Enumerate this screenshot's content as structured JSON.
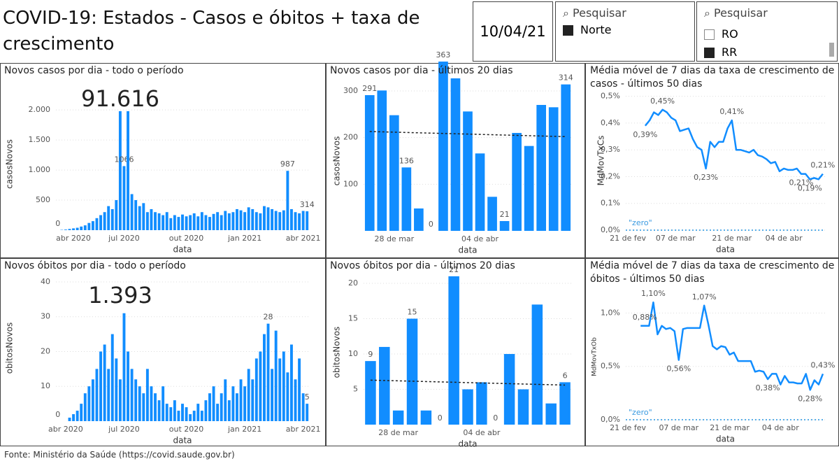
{
  "header": {
    "title": "COVID-19: Estados - Casos e óbitos + taxa de crescimento",
    "date": "10/04/21"
  },
  "slicers": [
    {
      "search": "Pesquisar",
      "items": [
        {
          "label": "Norte",
          "checked": true
        }
      ]
    },
    {
      "search": "Pesquisar",
      "items": [
        {
          "label": "RO",
          "checked": false
        },
        {
          "label": "RR",
          "checked": true
        }
      ]
    }
  ],
  "footer": "Fonte: Ministério da Saúde (https://covid.saude.gov.br)",
  "chart_data": [
    {
      "type": "bar",
      "title": "Novos casos por dia - todo o período",
      "xlabel": "data",
      "ylabel": "casosNovos",
      "color": "#118DFF",
      "grid": true,
      "total": {
        "value": 91616,
        "label": "91.616"
      },
      "ylim": [
        0,
        2200
      ],
      "yticks": [
        500,
        {
          "value": 1000,
          "label": "1.000"
        },
        {
          "value": 1500,
          "label": "1.500"
        },
        {
          "value": 2000,
          "label": "2.000"
        }
      ],
      "categories": [
        null,
        null,
        null,
        null,
        "abr 2020",
        null,
        null,
        null,
        null,
        null,
        null,
        null,
        null,
        null,
        null,
        null,
        null,
        "jul 2020",
        null,
        null,
        null,
        null,
        null,
        null,
        null,
        null,
        null,
        null,
        null,
        null,
        null,
        null,
        null,
        "out 2020",
        null,
        null,
        null,
        null,
        null,
        null,
        null,
        null,
        null,
        null,
        null,
        null,
        null,
        null,
        "jan 2021",
        null,
        null,
        null,
        null,
        null,
        null,
        null,
        null,
        null,
        null,
        null,
        null,
        null,
        null,
        "abr 2021",
        null
      ],
      "values": [
        0,
        5,
        10,
        20,
        30,
        40,
        60,
        80,
        120,
        150,
        200,
        250,
        300,
        400,
        350,
        500,
        1980,
        1066,
        1980,
        600,
        500,
        400,
        450,
        300,
        350,
        300,
        280,
        250,
        300,
        200,
        250,
        220,
        260,
        230,
        250,
        280,
        230,
        300,
        250,
        220,
        270,
        300,
        250,
        320,
        280,
        300,
        350,
        330,
        300,
        380,
        350,
        300,
        280,
        400,
        380,
        350,
        320,
        300,
        330,
        987,
        350,
        300,
        280,
        320,
        314
      ],
      "value_labels": [
        "0",
        null,
        null,
        null,
        null,
        null,
        null,
        null,
        null,
        null,
        null,
        null,
        null,
        null,
        null,
        null,
        null,
        "1066",
        null,
        null,
        null,
        null,
        null,
        null,
        null,
        null,
        null,
        null,
        null,
        null,
        null,
        null,
        null,
        null,
        null,
        null,
        null,
        null,
        null,
        null,
        null,
        null,
        null,
        null,
        null,
        null,
        null,
        null,
        null,
        null,
        null,
        null,
        null,
        null,
        null,
        null,
        null,
        null,
        null,
        "987",
        null,
        null,
        null,
        null,
        "314"
      ]
    },
    {
      "type": "bar",
      "title": "Novos casos por dia - últimos 20 dias",
      "xlabel": "data",
      "ylabel": "casosNovos",
      "color": "#118DFF",
      "grid": true,
      "ylim": [
        0,
        300
      ],
      "yticks": [
        100,
        200,
        300
      ],
      "categories": [
        null,
        null,
        "28 de mar",
        null,
        null,
        null,
        null,
        null,
        null,
        "04 de abr",
        null,
        null,
        null,
        null,
        null,
        null,
        null
      ],
      "values": [
        291,
        301,
        248,
        136,
        48,
        0,
        363,
        327,
        256,
        166,
        73,
        21,
        210,
        182,
        270,
        265,
        314
      ],
      "value_labels": [
        "291",
        null,
        null,
        "136",
        null,
        "0",
        "363",
        null,
        null,
        null,
        null,
        "21",
        null,
        null,
        null,
        null,
        "314"
      ],
      "trend_line": [
        213,
        202
      ]
    },
    {
      "type": "line",
      "title": "Média móvel de 7 dias da taxa de crescimento de casos - últimos 50 dias",
      "xlabel": "data",
      "ylabel": "MdMovTxCs",
      "color": "#118DFF",
      "grid": true,
      "ylim": [
        0,
        0.52
      ],
      "yticks": [
        {
          "value": 0,
          "label": "0,0%"
        },
        {
          "value": 0.1,
          "label": "0,1%"
        },
        {
          "value": 0.2,
          "label": "0,2%"
        },
        {
          "value": 0.3,
          "label": "0,3%"
        },
        {
          "value": 0.4,
          "label": "0,4%"
        },
        {
          "value": 0.5,
          "label": "0,5%"
        }
      ],
      "categories": [
        "21 de fev",
        null,
        null,
        null,
        null,
        null,
        null,
        null,
        null,
        null,
        null,
        "07 de mar",
        null,
        null,
        null,
        null,
        null,
        null,
        null,
        null,
        null,
        null,
        null,
        null,
        "21 de mar",
        null,
        null,
        null,
        null,
        null,
        null,
        null,
        null,
        null,
        null,
        null,
        "04 de abr",
        null,
        null,
        null,
        null,
        null,
        null,
        null,
        null,
        null
      ],
      "values": [
        null,
        null,
        null,
        null,
        0.39,
        0.41,
        0.44,
        0.43,
        0.45,
        0.44,
        0.42,
        0.41,
        0.37,
        0.375,
        0.38,
        0.34,
        0.31,
        0.3,
        0.23,
        0.33,
        0.31,
        0.33,
        0.33,
        0.38,
        0.41,
        0.3,
        0.3,
        0.295,
        0.29,
        0.3,
        0.28,
        0.275,
        0.265,
        0.25,
        0.255,
        0.22,
        0.23,
        0.225,
        0.225,
        0.23,
        0.21,
        0.21,
        0.19,
        0.195,
        0.19,
        0.21
      ],
      "value_labels": [
        null,
        null,
        null,
        null,
        "0,39%",
        null,
        null,
        null,
        "0,45%",
        null,
        null,
        null,
        null,
        null,
        null,
        null,
        null,
        null,
        "0,23%",
        null,
        null,
        null,
        null,
        null,
        "0,41%",
        null,
        null,
        null,
        null,
        null,
        null,
        null,
        null,
        null,
        null,
        null,
        null,
        null,
        null,
        null,
        "0,21%",
        null,
        "0,19%",
        null,
        null,
        "0,21%"
      ],
      "reference_line": {
        "value": 0,
        "label": "\"zero\""
      }
    },
    {
      "type": "bar",
      "title": "Novos óbitos por dia - todo o período",
      "xlabel": "data",
      "ylabel": "obitosNovos",
      "color": "#118DFF",
      "grid": true,
      "total": {
        "value": 1393,
        "label": "1.393"
      },
      "ylim": [
        0,
        42
      ],
      "yticks": [
        10,
        20,
        30,
        40
      ],
      "categories": [
        null,
        null,
        "abr 2020",
        null,
        null,
        null,
        null,
        null,
        null,
        null,
        null,
        null,
        null,
        null,
        null,
        null,
        null,
        "jul 2020",
        null,
        null,
        null,
        null,
        null,
        null,
        null,
        null,
        null,
        null,
        null,
        null,
        null,
        null,
        null,
        "out 2020",
        null,
        null,
        null,
        null,
        null,
        null,
        null,
        null,
        null,
        null,
        null,
        null,
        null,
        null,
        "jan 2021",
        null,
        null,
        null,
        null,
        null,
        null,
        null,
        null,
        null,
        null,
        null,
        null,
        null,
        null,
        "abr 2021",
        null
      ],
      "values": [
        0,
        0,
        0,
        1,
        2,
        3,
        5,
        8,
        10,
        12,
        15,
        20,
        22,
        15,
        25,
        18,
        12,
        31,
        20,
        15,
        12,
        10,
        8,
        15,
        10,
        8,
        6,
        10,
        5,
        4,
        6,
        3,
        5,
        4,
        2,
        3,
        5,
        3,
        6,
        8,
        10,
        5,
        8,
        12,
        6,
        10,
        8,
        12,
        10,
        15,
        12,
        18,
        20,
        25,
        28,
        15,
        26,
        18,
        20,
        14,
        22,
        12,
        18,
        8,
        5
      ],
      "value_labels": [
        "0",
        null,
        null,
        null,
        null,
        null,
        null,
        null,
        null,
        null,
        null,
        null,
        null,
        null,
        null,
        null,
        null,
        null,
        null,
        null,
        null,
        null,
        null,
        null,
        null,
        null,
        null,
        null,
        null,
        null,
        null,
        null,
        null,
        null,
        null,
        null,
        null,
        null,
        null,
        null,
        null,
        null,
        null,
        null,
        null,
        null,
        null,
        null,
        null,
        null,
        null,
        null,
        null,
        null,
        "28",
        null,
        null,
        null,
        null,
        null,
        null,
        null,
        null,
        null,
        "5"
      ]
    },
    {
      "type": "bar",
      "title": "Novos óbitos por dia - últimos 20 dias",
      "xlabel": "data",
      "ylabel": "obitosNovos",
      "color": "#118DFF",
      "grid": true,
      "ylim": [
        0,
        20.5
      ],
      "yticks": [
        5,
        10,
        15,
        20
      ],
      "categories": [
        null,
        null,
        "28 de mar",
        null,
        null,
        null,
        null,
        null,
        "04 de abr",
        null,
        null,
        null,
        null,
        null,
        null
      ],
      "values": [
        9,
        11,
        2,
        15,
        2,
        0,
        21,
        5,
        6,
        0,
        10,
        5,
        17,
        3,
        6
      ],
      "value_labels": [
        "9",
        null,
        null,
        "15",
        null,
        "0",
        "21",
        null,
        null,
        "0",
        null,
        null,
        null,
        null,
        "6"
      ],
      "trend_line": [
        6.3,
        5.6
      ]
    },
    {
      "type": "line",
      "title": "Média móvel de 7 dias da taxa de crescimento de óbitos - últimos 50 dias",
      "xlabel": "data",
      "ylabel": "MdMovTxOb",
      "color": "#118DFF",
      "grid": true,
      "ylim": [
        0,
        1.18
      ],
      "yticks": [
        {
          "value": 0,
          "label": "0,0%"
        },
        {
          "value": 0.5,
          "label": "0,5%"
        },
        {
          "value": 1,
          "label": "1,0%"
        }
      ],
      "categories": [
        "21 de fev",
        null,
        null,
        null,
        null,
        null,
        null,
        null,
        null,
        null,
        null,
        null,
        "07 de mar",
        null,
        null,
        null,
        null,
        null,
        null,
        null,
        null,
        null,
        null,
        null,
        "21 de mar",
        null,
        null,
        null,
        null,
        null,
        null,
        null,
        null,
        null,
        null,
        null,
        "04 de abr",
        null,
        null,
        null,
        null,
        null,
        null,
        null,
        null,
        null,
        null
      ],
      "values": [
        null,
        null,
        null,
        0.88,
        0.88,
        0.88,
        1.1,
        0.8,
        0.88,
        0.85,
        0.86,
        0.83,
        0.56,
        0.85,
        0.86,
        0.86,
        0.86,
        0.86,
        1.07,
        0.89,
        0.69,
        0.66,
        0.69,
        0.68,
        0.61,
        0.63,
        0.55,
        0.55,
        0.55,
        0.55,
        0.45,
        0.46,
        0.45,
        0.38,
        0.43,
        0.43,
        0.33,
        0.41,
        0.35,
        0.35,
        0.34,
        0.34,
        0.43,
        0.28,
        0.37,
        0.33,
        0.43
      ],
      "value_labels": [
        null,
        null,
        null,
        null,
        "0,88%",
        null,
        "1,10%",
        null,
        null,
        null,
        null,
        null,
        "0,56%",
        null,
        null,
        null,
        null,
        null,
        "1,07%",
        null,
        null,
        null,
        null,
        null,
        null,
        null,
        null,
        null,
        null,
        null,
        null,
        null,
        null,
        "0,38%",
        null,
        null,
        null,
        null,
        null,
        null,
        null,
        null,
        null,
        "0,28%",
        null,
        null,
        "0,43%"
      ],
      "reference_line": {
        "value": 0,
        "label": "\"zero\""
      }
    }
  ]
}
